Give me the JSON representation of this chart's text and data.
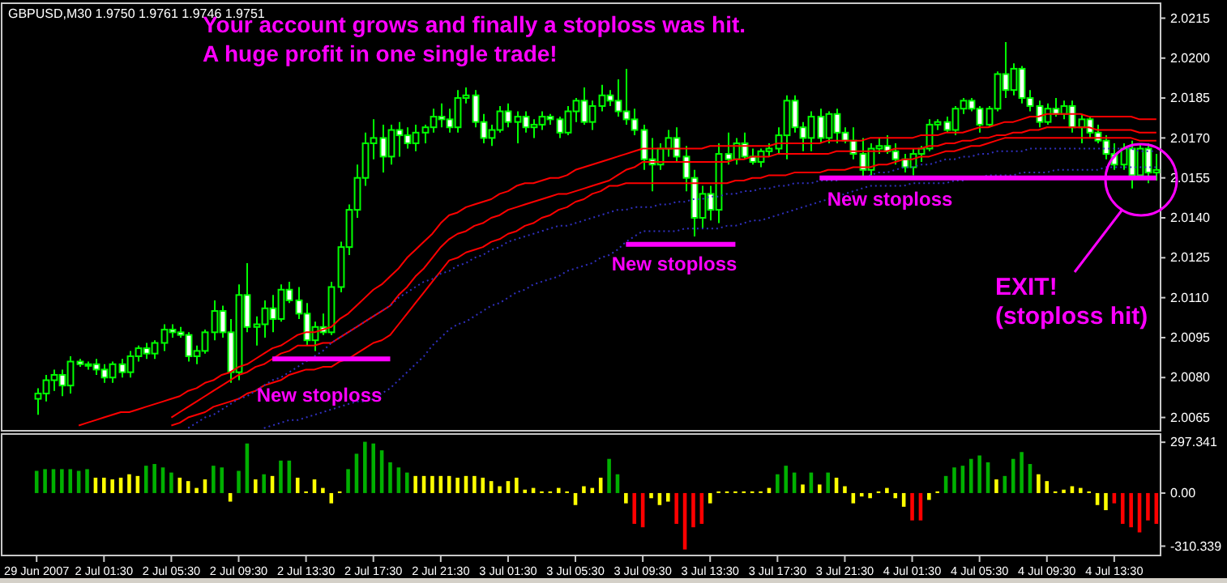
{
  "chart_data": [
    {
      "type": "candlestick",
      "title": "Your account grows and finally a stoploss was hit.",
      "subtitle": "A huge profit in one single trade!",
      "annotations": [
        "GBPUSD,M30 1.9750 1.9761 1.9746 1.9751",
        "New stoploss",
        "New stoploss",
        "New stoploss",
        "EXIT!\n(stoploss hit)"
      ],
      "color": "#00ff00",
      "categories": [
        null,
        null,
        null,
        null,
        null,
        null,
        null,
        null,
        null,
        null,
        null,
        null,
        null,
        null,
        null,
        null,
        null,
        null,
        null,
        null,
        null,
        null,
        null,
        null,
        null,
        null,
        null,
        null,
        null,
        null,
        null,
        null,
        null,
        null,
        null,
        null,
        null,
        null,
        null,
        null,
        null,
        null,
        null,
        null,
        null,
        null,
        null,
        null,
        null,
        null,
        null,
        null,
        null,
        null,
        null,
        null,
        null,
        null,
        null,
        null,
        null,
        null,
        null,
        null,
        null,
        null,
        null,
        null,
        null,
        null,
        null,
        null,
        null,
        null,
        null,
        null,
        null,
        null,
        null,
        null,
        null,
        null,
        null,
        null,
        null,
        null,
        null,
        null,
        null,
        null,
        null,
        null,
        null,
        null,
        null,
        null,
        null,
        null,
        null,
        null,
        null,
        null,
        null,
        null,
        null,
        null,
        null,
        null,
        null,
        null,
        null,
        null,
        null,
        null,
        null,
        null,
        null,
        null,
        null,
        null,
        null,
        null,
        null,
        null,
        null,
        null,
        null,
        null,
        null,
        null,
        null,
        null,
        null,
        null
      ],
      "ohlc": [
        [
          2.0072,
          2.0076,
          2.0066,
          2.0074
        ],
        [
          2.0074,
          2.0081,
          2.0071,
          2.0079
        ],
        [
          2.0079,
          2.0083,
          2.0075,
          2.0081
        ],
        [
          2.0081,
          2.0083,
          2.0073,
          2.0077
        ],
        [
          2.0077,
          2.0088,
          2.0074,
          2.0086
        ],
        [
          2.0086,
          2.0087,
          2.0084,
          2.0085
        ],
        [
          2.0085,
          2.0086,
          2.0083,
          2.0085
        ],
        [
          2.0085,
          2.0087,
          2.0081,
          2.0083
        ],
        [
          2.0083,
          2.0085,
          2.0078,
          2.008
        ],
        [
          2.008,
          2.0086,
          2.0078,
          2.0085
        ],
        [
          2.0085,
          2.0087,
          2.008,
          2.0082
        ],
        [
          2.0082,
          2.009,
          2.008,
          2.0088
        ],
        [
          2.0088,
          2.0092,
          2.0086,
          2.0091
        ],
        [
          2.0091,
          2.0093,
          2.0087,
          2.0089
        ],
        [
          2.0089,
          2.0094,
          2.0087,
          2.0093
        ],
        [
          2.0093,
          2.01,
          2.009,
          2.0098
        ],
        [
          2.0098,
          2.01,
          2.0095,
          2.0097
        ],
        [
          2.0097,
          2.0099,
          2.0095,
          2.0096
        ],
        [
          2.0096,
          2.0097,
          2.0086,
          2.0088
        ],
        [
          2.0088,
          2.0092,
          2.0085,
          2.009
        ],
        [
          2.009,
          2.0098,
          2.0089,
          2.0097
        ],
        [
          2.0097,
          2.0109,
          2.0094,
          2.0105
        ],
        [
          2.0105,
          2.0107,
          2.0095,
          2.0097
        ],
        [
          2.0097,
          2.0102,
          2.0078,
          2.0082
        ],
        [
          2.0082,
          2.0115,
          2.0079,
          2.0111
        ],
        [
          2.0111,
          2.0123,
          2.0097,
          2.0099
        ],
        [
          2.0099,
          2.0103,
          2.0092,
          2.01
        ],
        [
          2.01,
          2.0109,
          2.0095,
          2.0106
        ],
        [
          2.0106,
          2.0111,
          2.0097,
          2.0102
        ],
        [
          2.0102,
          2.0115,
          2.0101,
          2.0113
        ],
        [
          2.0113,
          2.0116,
          2.0108,
          2.0109
        ],
        [
          2.0109,
          2.0114,
          2.0102,
          2.0104
        ],
        [
          2.0104,
          2.0108,
          2.0092,
          2.0094
        ],
        [
          2.0094,
          2.0101,
          2.009,
          2.0099
        ],
        [
          2.0099,
          2.0104,
          2.0096,
          2.0097
        ],
        [
          2.0097,
          2.0116,
          2.0096,
          2.0114
        ],
        [
          2.0114,
          2.0131,
          2.0112,
          2.0129
        ],
        [
          2.0129,
          2.0145,
          2.0126,
          2.0143
        ],
        [
          2.0143,
          2.016,
          2.014,
          2.0155
        ],
        [
          2.0155,
          2.0172,
          2.0152,
          2.0168
        ],
        [
          2.0168,
          2.0177,
          2.0162,
          2.017
        ],
        [
          2.017,
          2.0175,
          2.0157,
          2.0163
        ],
        [
          2.0163,
          2.0175,
          2.016,
          2.0173
        ],
        [
          2.0173,
          2.0176,
          2.0163,
          2.0171
        ],
        [
          2.0171,
          2.0174,
          2.0166,
          2.0168
        ],
        [
          2.0168,
          2.0175,
          2.0165,
          2.0172
        ],
        [
          2.0172,
          2.0175,
          2.0168,
          2.0174
        ],
        [
          2.0174,
          2.0181,
          2.0172,
          2.0178
        ],
        [
          2.0178,
          2.0183,
          2.0174,
          2.0177
        ],
        [
          2.0177,
          2.0181,
          2.0172,
          2.0174
        ],
        [
          2.0174,
          2.0188,
          2.0172,
          2.0185
        ],
        [
          2.0185,
          2.0189,
          2.0183,
          2.0186
        ],
        [
          2.0186,
          2.0188,
          2.0174,
          2.0176
        ],
        [
          2.0176,
          2.0179,
          2.0168,
          2.017
        ],
        [
          2.017,
          2.0175,
          2.0167,
          2.0173
        ],
        [
          2.0173,
          2.0182,
          2.0172,
          2.018
        ],
        [
          2.018,
          2.0183,
          2.0174,
          2.0176
        ],
        [
          2.0176,
          2.018,
          2.0168,
          2.0178
        ],
        [
          2.0178,
          2.018,
          2.0172,
          2.0174
        ],
        [
          2.0174,
          2.0177,
          2.017,
          2.0175
        ],
        [
          2.0175,
          2.018,
          2.0173,
          2.0178
        ],
        [
          2.0178,
          2.0179,
          2.0175,
          2.0177
        ],
        [
          2.0177,
          2.0178,
          2.017,
          2.0172
        ],
        [
          2.0172,
          2.0182,
          2.0171,
          2.018
        ],
        [
          2.018,
          2.0185,
          2.0176,
          2.0184
        ],
        [
          2.0184,
          2.0189,
          2.0175,
          2.0176
        ],
        [
          2.0176,
          2.0184,
          2.0173,
          2.0182
        ],
        [
          2.0182,
          2.019,
          2.018,
          2.0186
        ],
        [
          2.0186,
          2.0188,
          2.0182,
          2.0184
        ],
        [
          2.0184,
          2.0192,
          2.0178,
          2.018
        ],
        [
          2.018,
          2.0196,
          2.0175,
          2.0177
        ],
        [
          2.0177,
          2.0181,
          2.0171,
          2.0173
        ],
        [
          2.0173,
          2.0175,
          2.0158,
          2.0162
        ],
        [
          2.0162,
          2.017,
          2.015,
          2.016
        ],
        [
          2.016,
          2.0168,
          2.0158,
          2.0166
        ],
        [
          2.0166,
          2.0173,
          2.0163,
          2.017
        ],
        [
          2.017,
          2.0174,
          2.0161,
          2.0163
        ],
        [
          2.0163,
          2.0167,
          2.015,
          2.0155
        ],
        [
          2.0155,
          2.0158,
          2.0133,
          2.014
        ],
        [
          2.014,
          2.0152,
          2.0136,
          2.0149
        ],
        [
          2.0149,
          2.0152,
          2.0139,
          2.0143
        ],
        [
          2.0143,
          2.0168,
          2.0138,
          2.0164
        ],
        [
          2.0164,
          2.0172,
          2.016,
          2.0162
        ],
        [
          2.0162,
          2.017,
          2.016,
          2.0168
        ],
        [
          2.0168,
          2.0172,
          2.0162,
          2.0163
        ],
        [
          2.0163,
          2.0166,
          2.016,
          2.0161
        ],
        [
          2.0161,
          2.0166,
          2.0159,
          2.0165
        ],
        [
          2.0165,
          2.0168,
          2.0163,
          2.0166
        ],
        [
          2.0166,
          2.0174,
          2.0164,
          2.0171
        ],
        [
          2.0171,
          2.0186,
          2.0162,
          2.0184
        ],
        [
          2.0184,
          2.0186,
          2.0172,
          2.0174
        ],
        [
          2.0174,
          2.0176,
          2.0165,
          2.017
        ],
        [
          2.017,
          2.018,
          2.0165,
          2.0178
        ],
        [
          2.0178,
          2.0181,
          2.0168,
          2.017
        ],
        [
          2.017,
          2.018,
          2.0168,
          2.0179
        ],
        [
          2.0179,
          2.0181,
          2.0168,
          2.0172
        ],
        [
          2.0172,
          2.0174,
          2.0168,
          2.0169
        ],
        [
          2.0169,
          2.0174,
          2.0162,
          2.0164
        ],
        [
          2.0164,
          2.017,
          2.0155,
          2.0158
        ],
        [
          2.0158,
          2.0168,
          2.0156,
          2.0166
        ],
        [
          2.0166,
          2.017,
          2.0164,
          2.0167
        ],
        [
          2.0167,
          2.0171,
          2.0164,
          2.0165
        ],
        [
          2.0165,
          2.0168,
          2.016,
          2.0162
        ],
        [
          2.0162,
          2.0164,
          2.0157,
          2.0159
        ],
        [
          2.0159,
          2.0166,
          2.0156,
          2.0164
        ],
        [
          2.0164,
          2.0167,
          2.0161,
          2.0166
        ],
        [
          2.0166,
          2.0177,
          2.0165,
          2.0175
        ],
        [
          2.0175,
          2.0177,
          2.0173,
          2.0176
        ],
        [
          2.0176,
          2.0178,
          2.0172,
          2.0173
        ],
        [
          2.0173,
          2.0182,
          2.0171,
          2.0181
        ],
        [
          2.0181,
          2.0185,
          2.0179,
          2.0184
        ],
        [
          2.0184,
          2.0185,
          2.018,
          2.0181
        ],
        [
          2.0181,
          2.0182,
          2.0172,
          2.0175
        ],
        [
          2.0175,
          2.0182,
          2.0174,
          2.0181
        ],
        [
          2.0181,
          2.0195,
          2.018,
          2.0194
        ],
        [
          2.0194,
          2.0206,
          2.0185,
          2.0188
        ],
        [
          2.0188,
          2.0198,
          2.0186,
          2.0196
        ],
        [
          2.0196,
          2.0197,
          2.0183,
          2.0185
        ],
        [
          2.0185,
          2.0188,
          2.018,
          2.0182
        ],
        [
          2.0182,
          2.0184,
          2.0174,
          2.0176
        ],
        [
          2.0176,
          2.0183,
          2.0175,
          2.0181
        ],
        [
          2.0181,
          2.0185,
          2.0178,
          2.0179
        ],
        [
          2.0179,
          2.0184,
          2.0177,
          2.0182
        ],
        [
          2.0182,
          2.0184,
          2.0172,
          2.0174
        ],
        [
          2.0174,
          2.0179,
          2.0168,
          2.0177
        ],
        [
          2.0177,
          2.0178,
          2.017,
          2.0172
        ],
        [
          2.0172,
          2.0175,
          2.0168,
          2.0169
        ],
        [
          2.0169,
          2.0171,
          2.0162,
          2.0164
        ],
        [
          2.0164,
          2.0168,
          2.0158,
          2.016
        ],
        [
          2.016,
          2.0168,
          2.0158,
          2.0166
        ],
        [
          2.0166,
          2.0169,
          2.0151,
          2.0156
        ],
        [
          2.0156,
          2.0168,
          2.0155,
          2.0166
        ],
        [
          2.0166,
          2.0168,
          2.0153,
          2.0157
        ],
        [
          2.0157,
          2.0164,
          2.0154,
          2.0158
        ]
      ],
      "series": [
        {
          "type": "line",
          "color": "#ff0000",
          "line_style": "solid",
          "values": [
            null,
            null,
            null,
            null,
            null,
            2.0062,
            2.0063,
            2.0064,
            2.0065,
            2.0066,
            2.0067,
            2.0067,
            2.0068,
            2.0069,
            2.007,
            2.0071,
            2.0072,
            2.0073,
            2.0075,
            2.0076,
            2.0078,
            2.0079,
            2.0081,
            2.0082,
            2.0084,
            2.0085,
            2.0087,
            2.0089,
            2.0091,
            2.0092,
            2.0094,
            2.0096,
            2.0097,
            2.0097,
            2.0098,
            2.0099,
            2.0102,
            2.0104,
            2.0107,
            2.011,
            2.0113,
            2.0115,
            2.0118,
            2.0121,
            2.0125,
            2.0128,
            2.0131,
            2.0134,
            2.0138,
            2.0141,
            2.0142,
            2.0144,
            2.0145,
            2.0146,
            2.0147,
            2.0149,
            2.015,
            2.0152,
            2.0153,
            2.0153,
            2.0154,
            2.0155,
            2.0155,
            2.0156,
            2.0158,
            2.0159,
            2.016,
            2.0161,
            2.0162,
            2.0163,
            2.0164,
            2.0165,
            2.0166,
            2.0166,
            2.0166,
            2.0166,
            2.0166,
            2.0166,
            2.0166,
            2.0166,
            2.0167,
            2.0167,
            2.0167,
            2.0167,
            2.0167,
            2.0167,
            2.0167,
            2.0167,
            2.0168,
            2.0168,
            2.0168,
            2.0168,
            2.0168,
            2.0168,
            2.0169,
            2.0169,
            2.0169,
            2.0169,
            2.0169,
            2.017,
            2.017,
            2.017,
            2.017,
            2.017,
            2.017,
            2.0171,
            2.0171,
            2.0171,
            2.0172,
            2.0172,
            2.0172,
            2.0173,
            2.0174,
            2.0174,
            2.0175,
            2.0176,
            2.0176,
            2.0177,
            2.0178,
            2.0178,
            2.0179,
            2.0179,
            2.0179,
            2.0179,
            2.0179,
            2.0178,
            2.0178,
            2.0178,
            2.0178,
            2.0178,
            2.0178,
            2.0177,
            2.0177,
            2.0177
          ]
        },
        {
          "type": "line",
          "color": "#ff0000",
          "line_style": "solid",
          "values": [
            null,
            null,
            null,
            null,
            null,
            null,
            null,
            null,
            null,
            null,
            null,
            null,
            null,
            null,
            null,
            null,
            2.0065,
            2.0067,
            2.0069,
            2.0071,
            2.0073,
            2.0075,
            2.0077,
            2.0079,
            2.0081,
            2.0082,
            2.0084,
            2.0085,
            2.0087,
            2.0089,
            2.009,
            2.0092,
            2.0092,
            2.0092,
            2.0093,
            2.0093,
            2.0095,
            2.0097,
            2.0099,
            2.0101,
            2.0103,
            2.0105,
            2.0107,
            2.0111,
            2.0114,
            2.0118,
            2.0121,
            2.0125,
            2.0129,
            2.0132,
            2.0134,
            2.0135,
            2.0137,
            2.0138,
            2.014,
            2.0141,
            2.0143,
            2.0144,
            2.0145,
            2.0146,
            2.0147,
            2.0148,
            2.0149,
            2.0149,
            2.015,
            2.0151,
            2.0152,
            2.0153,
            2.0154,
            2.0156,
            2.0158,
            2.0159,
            2.0161,
            2.0161,
            2.0161,
            2.0161,
            2.0161,
            2.0161,
            2.0161,
            2.0161,
            2.0161,
            2.0161,
            2.0161,
            2.0162,
            2.0162,
            2.0163,
            2.0163,
            2.0163,
            2.0164,
            2.0164,
            2.0164,
            2.0164,
            2.0164,
            2.0164,
            2.0164,
            2.0165,
            2.0165,
            2.0165,
            2.0165,
            2.0165,
            2.0165,
            2.0165,
            2.0166,
            2.0166,
            2.0166,
            2.0166,
            2.0167,
            2.0167,
            2.0168,
            2.0168,
            2.0169,
            2.0169,
            2.017,
            2.017,
            2.0171,
            2.0171,
            2.0172,
            2.0172,
            2.0173,
            2.0173,
            2.0174,
            2.0174,
            2.0174,
            2.0174,
            2.0174,
            2.0174,
            2.0173,
            2.0173,
            2.0173,
            2.0173,
            2.0173,
            2.0172,
            2.0172,
            2.0172
          ]
        },
        {
          "type": "line",
          "color": "#ff0000",
          "line_style": "solid",
          "values": [
            null,
            null,
            null,
            null,
            null,
            null,
            null,
            null,
            null,
            null,
            null,
            null,
            null,
            null,
            null,
            null,
            2.0062,
            2.0063,
            2.0065,
            2.0066,
            2.0067,
            2.0069,
            2.007,
            2.0071,
            2.0072,
            2.0074,
            2.0075,
            2.0077,
            2.0078,
            2.0079,
            2.0081,
            2.0082,
            2.0083,
            2.0083,
            2.0084,
            2.0084,
            2.0086,
            2.0087,
            2.0089,
            2.0091,
            2.0093,
            2.0094,
            2.0096,
            2.01,
            2.0104,
            2.0108,
            2.0112,
            2.0116,
            2.012,
            2.0124,
            2.0125,
            2.0127,
            2.0128,
            2.0129,
            2.0131,
            2.0132,
            2.0134,
            2.0135,
            2.0137,
            2.0138,
            2.014,
            2.0141,
            2.0143,
            2.0144,
            2.0146,
            2.0147,
            2.0149,
            2.015,
            2.0152,
            2.0152,
            2.0153,
            2.0153,
            2.0153,
            2.0153,
            2.0153,
            2.0153,
            2.0153,
            2.0153,
            2.0153,
            2.0153,
            2.0153,
            2.0153,
            2.0153,
            2.0154,
            2.0154,
            2.0155,
            2.0155,
            2.0156,
            2.0156,
            2.0156,
            2.0157,
            2.0157,
            2.0157,
            2.0157,
            2.0158,
            2.0158,
            2.0158,
            2.0159,
            2.0159,
            2.0159,
            2.016,
            2.016,
            2.0161,
            2.0162,
            2.0162,
            2.0163,
            2.0163,
            2.0164,
            2.0165,
            2.0165,
            2.0166,
            2.0167,
            2.0167,
            2.0168,
            2.0169,
            2.017,
            2.017,
            2.017,
            2.017,
            2.017,
            2.017,
            2.017,
            2.017,
            2.017,
            2.017,
            2.017,
            2.017,
            2.017,
            2.017,
            2.017,
            2.017,
            2.0169,
            2.0169,
            2.0169
          ]
        },
        {
          "type": "line",
          "color": "#3030c0",
          "line_style": "dotted",
          "values": [
            null,
            null,
            null,
            null,
            null,
            null,
            null,
            null,
            null,
            null,
            null,
            null,
            null,
            null,
            null,
            null,
            null,
            null,
            2.0061,
            2.0063,
            2.0065,
            2.0066,
            2.0068,
            2.007,
            2.0072,
            2.0073,
            2.0075,
            2.0077,
            2.0079,
            2.008,
            2.0082,
            2.0084,
            2.0086,
            2.0088,
            2.009,
            2.0093,
            2.0095,
            2.0097,
            2.0099,
            2.0101,
            2.0103,
            2.0105,
            2.0107,
            2.011,
            2.0112,
            2.0114,
            2.0116,
            2.0117,
            2.0119,
            2.012,
            2.0122,
            2.0123,
            2.0125,
            2.0126,
            2.0128,
            2.0129,
            2.0131,
            2.0132,
            2.0133,
            2.0134,
            2.0135,
            2.0136,
            2.0137,
            2.0137,
            2.0138,
            2.0139,
            2.014,
            2.0141,
            2.0142,
            2.0143,
            2.0143,
            2.0144,
            2.0144,
            2.0144,
            2.0145,
            2.0145,
            2.0146,
            2.0146,
            2.0147,
            2.0147,
            2.0148,
            2.0148,
            2.0149,
            2.0149,
            2.015,
            2.015,
            2.0151,
            2.0151,
            2.0152,
            2.0152,
            2.0153,
            2.0153,
            2.0153,
            2.0154,
            2.0154,
            2.0154,
            2.0155,
            2.0155,
            2.0155,
            2.0156,
            2.0157,
            2.0157,
            2.0158,
            2.0159,
            2.0159,
            2.016,
            2.016,
            2.0161,
            2.0162,
            2.0162,
            2.0163,
            2.0163,
            2.0164,
            2.0164,
            2.0165,
            2.0165,
            2.0165,
            2.0165,
            2.0166,
            2.0166,
            2.0166,
            2.0166,
            2.0166,
            2.0166,
            2.0166,
            2.0166,
            2.0166,
            2.0166,
            2.0166,
            2.0166,
            2.0166,
            2.0165,
            2.0165,
            2.0165
          ]
        },
        {
          "type": "line",
          "color": "#3030c0",
          "line_style": "dotted",
          "values": [
            null,
            null,
            null,
            null,
            null,
            null,
            null,
            null,
            null,
            null,
            null,
            null,
            null,
            null,
            null,
            null,
            null,
            null,
            null,
            null,
            null,
            null,
            null,
            null,
            null,
            null,
            null,
            2.0061,
            2.0062,
            2.0063,
            2.0064,
            2.0064,
            2.0065,
            2.0066,
            2.0067,
            2.0068,
            2.0069,
            2.007,
            2.0071,
            2.0071,
            2.0072,
            2.0074,
            2.0076,
            2.0079,
            2.0082,
            2.0085,
            2.0088,
            2.0092,
            2.0095,
            2.0098,
            2.01,
            2.0101,
            2.0103,
            2.0105,
            2.0107,
            2.0108,
            2.011,
            2.0112,
            2.0113,
            2.0115,
            2.0116,
            2.0117,
            2.0118,
            2.012,
            2.0121,
            2.0122,
            2.0123,
            2.0125,
            2.0126,
            2.0128,
            2.0131,
            2.0133,
            2.0135,
            2.0135,
            2.0135,
            2.0135,
            2.0135,
            2.0136,
            2.0136,
            2.0136,
            2.0136,
            2.0136,
            2.0137,
            2.0137,
            2.0138,
            2.0139,
            2.0139,
            2.014,
            2.0141,
            2.0142,
            2.0143,
            2.0144,
            2.0145,
            2.0146,
            2.0147,
            2.0148,
            2.0149,
            2.015,
            2.0151,
            2.0152,
            2.0152,
            2.0152,
            2.0152,
            2.0152,
            2.0153,
            2.0153,
            2.0153,
            2.0153,
            2.0153,
            2.0154,
            2.0154,
            2.0155,
            2.0155,
            2.0156,
            2.0156,
            2.0156,
            2.0156,
            2.0157,
            2.0157,
            2.0157,
            2.0157,
            2.0158,
            2.0158,
            2.0158,
            2.0158,
            2.0158,
            2.0158,
            2.0159,
            2.0159,
            2.0159,
            2.0159,
            2.0159,
            2.0159,
            2.0159
          ]
        },
        {
          "type": "line",
          "color": "#ff00ff",
          "line_style": "solid",
          "values": [
            null,
            null,
            null,
            null,
            null,
            null,
            null,
            null,
            null,
            null,
            null,
            null,
            null,
            null,
            null,
            null,
            null,
            null,
            null,
            null,
            null,
            null,
            null,
            null,
            null,
            null,
            null,
            null,
            2.0087,
            2.0087,
            2.0087,
            2.0087,
            2.0087,
            2.0087,
            2.0087,
            2.0087,
            2.0087,
            2.0087,
            2.0087,
            2.0087,
            2.0087,
            2.0087,
            2.0087,
            null,
            null,
            null,
            null,
            null,
            null,
            null,
            null,
            null,
            null,
            null,
            null,
            null,
            null,
            null,
            null,
            null,
            null,
            null,
            null,
            null,
            null,
            null,
            null,
            null,
            null,
            null,
            2.013,
            2.013,
            2.013,
            2.013,
            2.013,
            2.013,
            2.013,
            2.013,
            2.013,
            2.013,
            2.013,
            2.013,
            2.013,
            2.013,
            null,
            null,
            null,
            null,
            null,
            null,
            null,
            null,
            null,
            2.0155,
            2.0155,
            2.0155,
            2.0155,
            2.0155,
            2.0155,
            2.0155,
            2.0155,
            2.0155,
            2.0155,
            2.0155,
            2.0155,
            2.0155,
            2.0155,
            2.0155,
            2.0155,
            2.0155,
            2.0155,
            2.0155,
            2.0155,
            2.0155,
            2.0155,
            2.0155,
            2.0155,
            2.0155,
            2.0155,
            2.0155,
            2.0155,
            2.0155,
            2.0155,
            2.0155,
            2.0155,
            2.0155,
            2.0155,
            2.0155,
            2.0155,
            2.0155,
            2.0155,
            2.0155,
            2.0155,
            2.0155
          ]
        }
      ],
      "ylim": [
        2.006,
        2.022
      ],
      "yticks": [
        2.0215,
        {
          "value": 2.02,
          "label": "2.0200"
        },
        2.0185,
        {
          "value": 2.017,
          "label": "2.0170"
        },
        2.0155,
        {
          "value": 2.014,
          "label": "2.0140"
        },
        2.0125,
        {
          "value": 2.011,
          "label": "2.0110"
        },
        2.0095,
        {
          "value": 2.008,
          "label": "2.0080"
        },
        2.0065
      ],
      "tick_labels": "y"
    },
    {
      "type": "bar",
      "categories": [
        "29 Jun 2007",
        null,
        null,
        null,
        null,
        null,
        null,
        null,
        "2 Jul 01:30",
        null,
        null,
        null,
        null,
        null,
        null,
        null,
        "2 Jul 05:30",
        null,
        null,
        null,
        null,
        null,
        null,
        null,
        "2 Jul 09:30",
        null,
        null,
        null,
        null,
        null,
        null,
        null,
        "2 Jul 13:30",
        null,
        null,
        null,
        null,
        null,
        null,
        null,
        "2 Jul 17:30",
        null,
        null,
        null,
        null,
        null,
        null,
        null,
        "2 Jul 21:30",
        null,
        null,
        null,
        null,
        null,
        null,
        null,
        "3 Jul 01:30",
        null,
        null,
        null,
        null,
        null,
        null,
        null,
        "3 Jul 05:30",
        null,
        null,
        null,
        null,
        null,
        null,
        null,
        "3 Jul 09:30",
        null,
        null,
        null,
        null,
        null,
        null,
        null,
        "3 Jul 13:30",
        null,
        null,
        null,
        null,
        null,
        null,
        null,
        "3 Jul 17:30",
        null,
        null,
        null,
        null,
        null,
        null,
        null,
        "3 Jul 21:30",
        null,
        null,
        null,
        null,
        null,
        null,
        null,
        "4 Jul 01:30",
        null,
        null,
        null,
        null,
        null,
        null,
        null,
        "4 Jul 05:30",
        null,
        null,
        null,
        null,
        null,
        null,
        null,
        "4 Jul 09:30",
        null,
        null,
        null,
        null,
        null,
        null,
        null,
        "4 Jul 13:30",
        null,
        null,
        null,
        null,
        null
      ],
      "values": [
        130,
        140,
        140,
        140,
        140,
        130,
        140,
        90,
        90,
        80,
        90,
        110,
        100,
        160,
        170,
        150,
        120,
        90,
        70,
        30,
        80,
        160,
        150,
        -50,
        130,
        290,
        80,
        110,
        100,
        190,
        190,
        90,
        10,
        80,
        30,
        -60,
        10,
        140,
        230,
        300,
        290,
        250,
        180,
        150,
        120,
        100,
        100,
        100,
        100,
        100,
        90,
        100,
        100,
        90,
        70,
        40,
        70,
        90,
        20,
        30,
        10,
        10,
        30,
        10,
        -70,
        40,
        30,
        90,
        200,
        110,
        -60,
        -180,
        -200,
        -30,
        -70,
        -50,
        -180,
        -330,
        -200,
        -180,
        -60,
        10,
        10,
        10,
        10,
        10,
        10,
        30,
        110,
        160,
        120,
        50,
        120,
        50,
        120,
        90,
        40,
        -60,
        -20,
        -30,
        10,
        30,
        -30,
        -80,
        -160,
        -160,
        -40,
        10,
        100,
        150,
        160,
        200,
        220,
        180,
        80,
        100,
        200,
        240,
        170,
        110,
        70,
        10,
        20,
        40,
        30,
        10,
        -70,
        -100,
        -60,
        -180,
        -200,
        -230,
        -160,
        -180
      ],
      "colors": [
        "#00b000",
        "#00b000",
        "#00b000",
        "#00b000",
        "#00b000",
        "#00b000",
        "#00b000",
        "#ffff00",
        "#ffff00",
        "#ffff00",
        "#ffff00",
        "#ffff00",
        "#ffff00",
        "#00b000",
        "#00b000",
        "#00b000",
        "#00b000",
        "#ffff00",
        "#ffff00",
        "#ffff00",
        "#ffff00",
        "#00b000",
        "#00b000",
        "#ffff00",
        "#00b000",
        "#00b000",
        "#ffff00",
        "#00b000",
        "#ffff00",
        "#00b000",
        "#00b000",
        "#ffff00",
        "#ffff00",
        "#ffff00",
        "#ffff00",
        "#ffff00",
        "#ffff00",
        "#00b000",
        "#00b000",
        "#00b000",
        "#00b000",
        "#00b000",
        "#00b000",
        "#00b000",
        "#00b000",
        "#ffff00",
        "#ffff00",
        "#ffff00",
        "#ffff00",
        "#ffff00",
        "#ffff00",
        "#ffff00",
        "#ffff00",
        "#ffff00",
        "#ffff00",
        "#ffff00",
        "#ffff00",
        "#ffff00",
        "#ffff00",
        "#ffff00",
        "#ffff00",
        "#ffff00",
        "#ffff00",
        "#ffff00",
        "#ffff00",
        "#ffff00",
        "#ffff00",
        "#ffff00",
        "#00b000",
        "#00b000",
        "#ffff00",
        "#ff0000",
        "#ff0000",
        "#ffff00",
        "#ffff00",
        "#ffff00",
        "#ff0000",
        "#ff0000",
        "#ff0000",
        "#ff0000",
        "#ffff00",
        "#ffff00",
        "#ffff00",
        "#ffff00",
        "#ffff00",
        "#ffff00",
        "#ffff00",
        "#ffff00",
        "#00b000",
        "#00b000",
        "#00b000",
        "#ffff00",
        "#00b000",
        "#ffff00",
        "#00b000",
        "#ffff00",
        "#ffff00",
        "#ffff00",
        "#ffff00",
        "#ffff00",
        "#ffff00",
        "#ffff00",
        "#ffff00",
        "#ffff00",
        "#ff0000",
        "#ff0000",
        "#ffff00",
        "#ffff00",
        "#00b000",
        "#00b000",
        "#00b000",
        "#00b000",
        "#00b000",
        "#00b000",
        "#ffff00",
        "#00b000",
        "#00b000",
        "#00b000",
        "#00b000",
        "#ffff00",
        "#ffff00",
        "#ffff00",
        "#ffff00",
        "#ffff00",
        "#ffff00",
        "#ffff00",
        "#ffff00",
        "#ffff00",
        "#ff0000",
        "#ff0000",
        "#ff0000",
        "#ff0000",
        "#ff0000",
        "#ff0000"
      ],
      "ylim": [
        -365,
        336
      ],
      "yticks": [
        297.341,
        {
          "value": 0,
          "label": "0.00"
        },
        -310.339
      ]
    }
  ]
}
